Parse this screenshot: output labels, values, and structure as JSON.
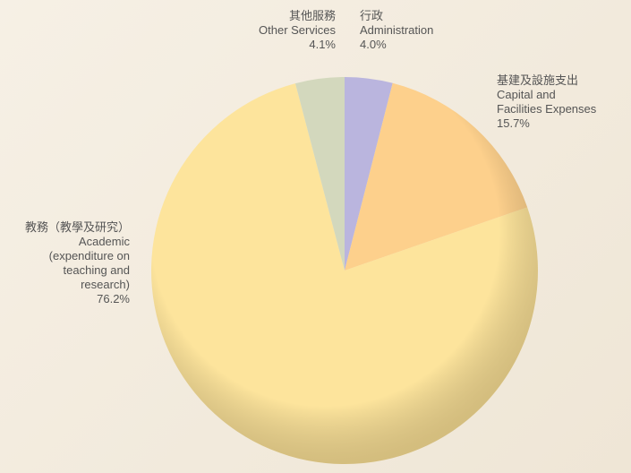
{
  "chart_data": {
    "type": "pie",
    "categories_zh": [
      "行政",
      "基建及設施支出",
      "教務（教學及研究）",
      "其他服務"
    ],
    "categories": [
      "Administration",
      "Capital and\nFacilities Expenses",
      "Academic\n(expenditure on\nteaching and\nresearch)",
      "Other Services"
    ],
    "values": [
      4.0,
      15.7,
      76.2,
      4.1
    ],
    "value_labels": [
      "4.0%",
      "15.7%",
      "76.2%",
      "4.1%"
    ],
    "colors": [
      "#bab5de",
      "#fdd08c",
      "#fde49c",
      "#d3d8bd"
    ]
  }
}
